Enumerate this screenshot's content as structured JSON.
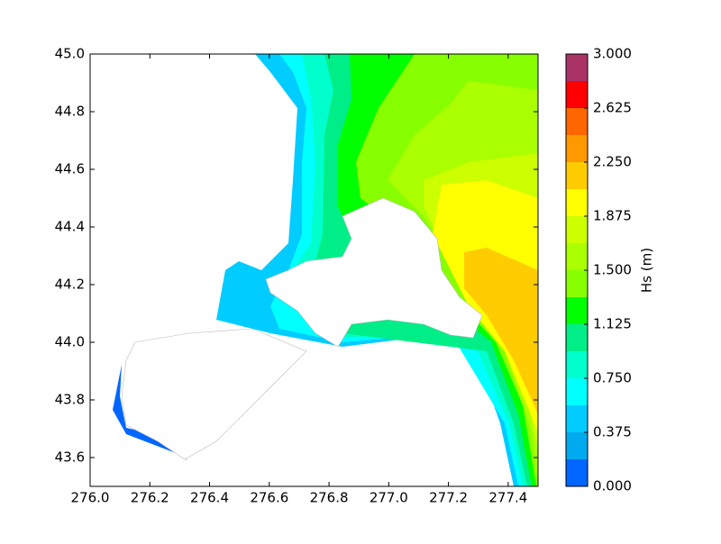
{
  "chart_data": {
    "type": "contour",
    "xlim": [
      276.0,
      277.5
    ],
    "ylim": [
      43.5,
      45.0
    ],
    "xticks": [
      {
        "value": 276.0,
        "label": "276.0"
      },
      {
        "value": 276.2,
        "label": "276.2"
      },
      {
        "value": 276.4,
        "label": "276.4"
      },
      {
        "value": 276.6,
        "label": "276.6"
      },
      {
        "value": 276.8,
        "label": "276.8"
      },
      {
        "value": 277.0,
        "label": "277.0"
      },
      {
        "value": 277.2,
        "label": "277.2"
      },
      {
        "value": 277.4,
        "label": "277.4"
      }
    ],
    "yticks": [
      43.6,
      43.8,
      {
        "value": 44.0,
        "label": "44.0"
      },
      44.2,
      44.4,
      44.6,
      44.8,
      {
        "value": 45.0,
        "label": "45.0"
      }
    ],
    "colorbar": {
      "label": "Hs (m)",
      "levels": [
        0,
        0.1875,
        0.375,
        0.5625,
        0.75,
        0.9375,
        1.125,
        1.3125,
        1.5,
        1.6875,
        1.875,
        2.0625,
        2.25,
        2.4375,
        2.625,
        2.8125,
        3.0
      ],
      "colors": [
        "#0066ff",
        "#00aaee",
        "#00ccff",
        "#00ffff",
        "#00ffcc",
        "#00ee88",
        "#00ff00",
        "#88ff00",
        "#aaff00",
        "#ccff00",
        "#ffff00",
        "#ffcc00",
        "#ff9900",
        "#ff6600",
        "#ff0000",
        "#aa3366",
        "#cc2299"
      ],
      "ticks": [
        {
          "value": 0,
          "label": "0.000"
        },
        {
          "value": 0.375,
          "label": "0.375"
        },
        {
          "value": 0.75,
          "label": "0.750"
        },
        {
          "value": 1.125,
          "label": "1.125"
        },
        {
          "value": 1.5,
          "label": "1.500"
        },
        {
          "value": 1.875,
          "label": "1.875"
        },
        {
          "value": 2.25,
          "label": "2.250"
        },
        {
          "value": 2.625,
          "label": "2.625"
        },
        {
          "value": 3.0,
          "label": "3.000"
        }
      ]
    }
  }
}
